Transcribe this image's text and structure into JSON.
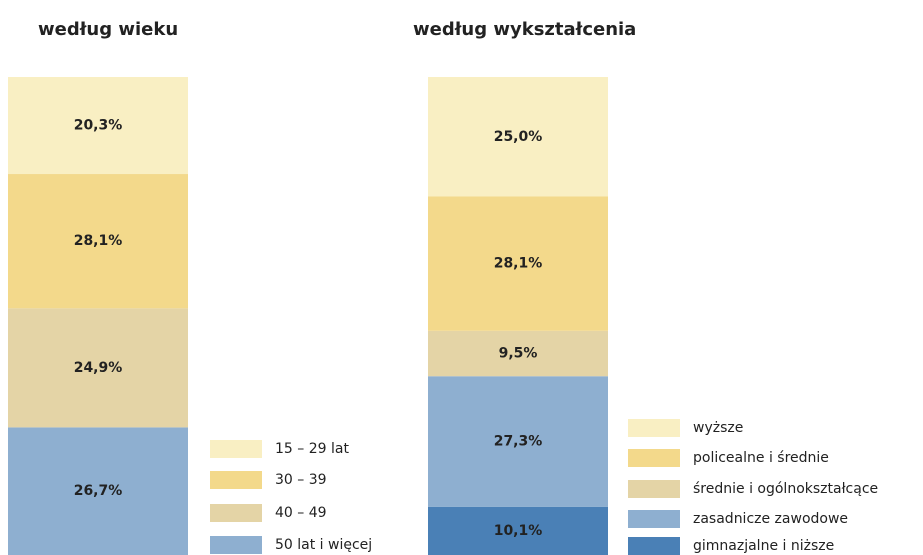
{
  "chart_data": [
    {
      "type": "stacked-bar",
      "title": "według wieku",
      "ylim": [
        0,
        100
      ],
      "series": [
        {
          "name": "15 – 29 lat",
          "color": "#f9efc3",
          "values": [
            20.3
          ],
          "value_labels": [
            "20,3%"
          ]
        },
        {
          "name": "30 – 39",
          "color": "#f3d98b",
          "values": [
            28.1
          ],
          "value_labels": [
            "28,1%"
          ]
        },
        {
          "name": "40 – 49",
          "color": "#e4d4a6",
          "values": [
            24.9
          ],
          "value_labels": [
            "24,9%"
          ]
        },
        {
          "name": "50 lat i więcej",
          "color": "#8eafd0",
          "values": [
            26.7
          ],
          "value_labels": [
            "26,7%"
          ]
        }
      ]
    },
    {
      "type": "stacked-bar",
      "title": "według wykształcenia",
      "ylim": [
        0,
        100
      ],
      "series": [
        {
          "name": "wyższe",
          "color": "#f9efc3",
          "values": [
            25.0
          ],
          "value_labels": [
            "25,0%"
          ]
        },
        {
          "name": "policealne i średnie",
          "color": "#f3d98b",
          "values": [
            28.1
          ],
          "value_labels": [
            "28,1%"
          ]
        },
        {
          "name": "średnie i ogólnokształcące",
          "color": "#e4d4a6",
          "values": [
            9.5
          ],
          "value_labels": [
            "9,5%"
          ]
        },
        {
          "name": "zasadnicze zawodowe",
          "color": "#8eafd0",
          "values": [
            27.3
          ],
          "value_labels": [
            "27,3%"
          ]
        },
        {
          "name": "gimnazjalne i niższe",
          "color": "#4a80b6",
          "values": [
            10.1
          ],
          "value_labels": [
            "10,1%"
          ]
        }
      ]
    }
  ]
}
